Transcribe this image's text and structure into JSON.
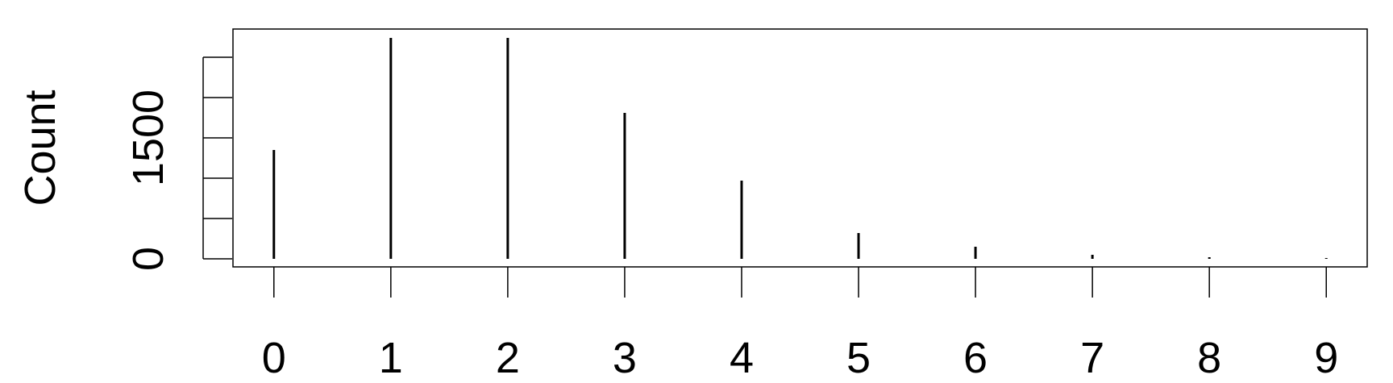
{
  "chart_data": {
    "type": "bar",
    "categories": [
      "0",
      "1",
      "2",
      "3",
      "4",
      "5",
      "6",
      "7",
      "8",
      "9"
    ],
    "values": [
      1350,
      2740,
      2740,
      1810,
      970,
      320,
      150,
      50,
      20,
      10
    ],
    "ylabel": "Count",
    "xlabel": "",
    "yticks": [
      0,
      500,
      1000,
      1500,
      2000,
      2500
    ],
    "ytick_labels": [
      "0",
      "",
      "",
      "1500",
      "",
      ""
    ],
    "ylim": [
      -100,
      2850
    ],
    "xlim": [
      -0.35,
      9.35
    ],
    "grid": false,
    "colors": {
      "bars": "#000000",
      "axes": "#000000",
      "background": "#ffffff"
    }
  }
}
